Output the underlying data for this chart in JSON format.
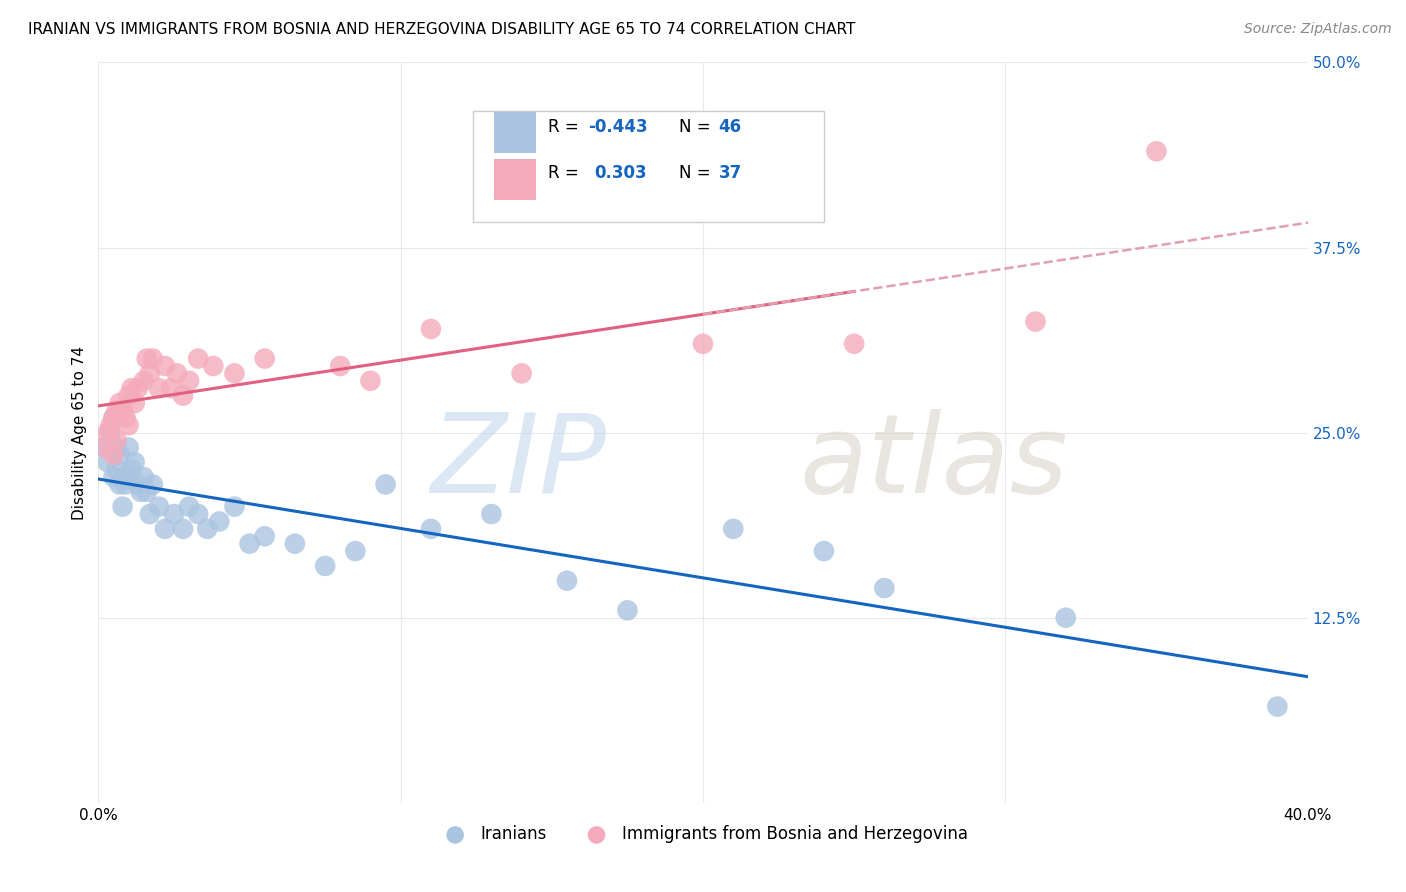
{
  "title": "IRANIAN VS IMMIGRANTS FROM BOSNIA AND HERZEGOVINA DISABILITY AGE 65 TO 74 CORRELATION CHART",
  "source": "Source: ZipAtlas.com",
  "ylabel": "Disability Age 65 to 74",
  "xlim": [
    0.0,
    0.4
  ],
  "ylim": [
    0.0,
    0.5
  ],
  "legend": {
    "blue_R": "-0.443",
    "blue_N": "46",
    "pink_R": "0.303",
    "pink_N": "37"
  },
  "iranians_x": [
    0.002,
    0.003,
    0.004,
    0.005,
    0.005,
    0.006,
    0.006,
    0.007,
    0.007,
    0.008,
    0.008,
    0.009,
    0.01,
    0.01,
    0.011,
    0.012,
    0.013,
    0.014,
    0.015,
    0.016,
    0.017,
    0.018,
    0.02,
    0.022,
    0.025,
    0.028,
    0.03,
    0.033,
    0.036,
    0.04,
    0.045,
    0.05,
    0.055,
    0.065,
    0.075,
    0.085,
    0.095,
    0.11,
    0.13,
    0.155,
    0.175,
    0.21,
    0.24,
    0.26,
    0.32,
    0.39
  ],
  "iranians_y": [
    0.24,
    0.23,
    0.25,
    0.26,
    0.22,
    0.24,
    0.225,
    0.235,
    0.215,
    0.22,
    0.2,
    0.215,
    0.24,
    0.22,
    0.225,
    0.23,
    0.215,
    0.21,
    0.22,
    0.21,
    0.195,
    0.215,
    0.2,
    0.185,
    0.195,
    0.185,
    0.2,
    0.195,
    0.185,
    0.19,
    0.2,
    0.175,
    0.18,
    0.175,
    0.16,
    0.17,
    0.215,
    0.185,
    0.195,
    0.15,
    0.13,
    0.185,
    0.17,
    0.145,
    0.125,
    0.065
  ],
  "bosnia_x": [
    0.002,
    0.003,
    0.004,
    0.005,
    0.005,
    0.006,
    0.006,
    0.007,
    0.008,
    0.009,
    0.01,
    0.01,
    0.011,
    0.012,
    0.013,
    0.015,
    0.016,
    0.017,
    0.018,
    0.02,
    0.022,
    0.024,
    0.026,
    0.028,
    0.03,
    0.033,
    0.038,
    0.045,
    0.055,
    0.08,
    0.09,
    0.11,
    0.14,
    0.2,
    0.25,
    0.31,
    0.35
  ],
  "bosnia_y": [
    0.24,
    0.25,
    0.255,
    0.26,
    0.235,
    0.265,
    0.245,
    0.27,
    0.265,
    0.26,
    0.275,
    0.255,
    0.28,
    0.27,
    0.28,
    0.285,
    0.3,
    0.29,
    0.3,
    0.28,
    0.295,
    0.28,
    0.29,
    0.275,
    0.285,
    0.3,
    0.295,
    0.29,
    0.3,
    0.295,
    0.285,
    0.32,
    0.29,
    0.31,
    0.31,
    0.325,
    0.44
  ],
  "blue_color": "#aac4e0",
  "pink_color": "#f4aabb",
  "blue_line_color": "#1565c0",
  "pink_line_color": "#e06080",
  "pink_dash_color": "#e0a0b0",
  "background_color": "#ffffff",
  "grid_color": "#e8e8e8",
  "ylabel_color": "#000000",
  "ytick_color": "#1565c0",
  "xtick_color": "#000000"
}
